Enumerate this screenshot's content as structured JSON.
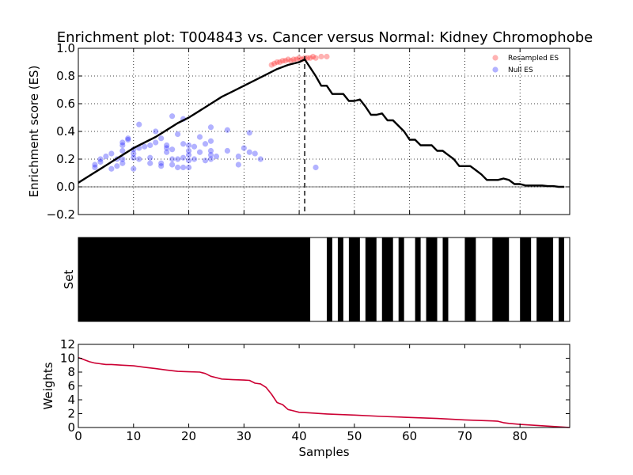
{
  "chart_data": [
    {
      "panel": "enrichment",
      "type": "line",
      "title": "Enrichment plot: T004843 vs. Cancer versus Normal: Kidney Chromophobe",
      "xlabel": "",
      "ylabel": "Enrichment score (ES)",
      "xlim": [
        0,
        89
      ],
      "ylim": [
        -0.2,
        1.0
      ],
      "xticks": [
        0,
        10,
        20,
        30,
        40,
        50,
        60,
        70,
        80
      ],
      "yticks": [
        -0.2,
        0.0,
        0.2,
        0.4,
        0.6,
        0.8,
        1.0
      ],
      "ytick_labels": [
        "−0.2",
        "0.0",
        "0.2",
        "0.4",
        "0.6",
        "0.8",
        "1.0"
      ],
      "grid": true,
      "legend_position": "top-right",
      "peak_x": 41,
      "running_es": {
        "x": [
          0,
          2,
          4,
          6,
          8,
          10,
          12,
          14,
          16,
          18,
          20,
          22,
          24,
          26,
          28,
          30,
          32,
          34,
          36,
          38,
          40,
          41,
          42,
          43,
          44,
          45,
          46,
          47,
          48,
          49,
          50,
          51,
          52,
          53,
          54,
          55,
          56,
          57,
          58,
          59,
          60,
          61,
          62,
          63,
          64,
          65,
          66,
          67,
          68,
          69,
          70,
          71,
          72,
          73,
          74,
          75,
          76,
          77,
          78,
          79,
          80,
          81,
          82,
          83,
          84,
          85,
          86,
          87,
          88
        ],
        "y": [
          0.03,
          0.08,
          0.13,
          0.18,
          0.23,
          0.28,
          0.32,
          0.36,
          0.41,
          0.46,
          0.5,
          0.55,
          0.6,
          0.65,
          0.69,
          0.73,
          0.77,
          0.81,
          0.85,
          0.88,
          0.9,
          0.92,
          0.86,
          0.8,
          0.73,
          0.73,
          0.67,
          0.67,
          0.67,
          0.62,
          0.62,
          0.63,
          0.58,
          0.52,
          0.52,
          0.53,
          0.48,
          0.48,
          0.44,
          0.4,
          0.34,
          0.34,
          0.3,
          0.3,
          0.3,
          0.26,
          0.26,
          0.23,
          0.2,
          0.15,
          0.15,
          0.15,
          0.12,
          0.09,
          0.05,
          0.05,
          0.05,
          0.06,
          0.05,
          0.02,
          0.02,
          0.01,
          0.01,
          0.01,
          0.01,
          0.005,
          0.005,
          0.0,
          0.0
        ]
      },
      "series": [
        {
          "name": "Resampled ES",
          "color": "#ff0000",
          "points": [
            [
              35,
              0.88
            ],
            [
              35.5,
              0.89
            ],
            [
              36,
              0.9
            ],
            [
              36.5,
              0.9
            ],
            [
              37,
              0.91
            ],
            [
              37.5,
              0.91
            ],
            [
              38,
              0.92
            ],
            [
              38.5,
              0.91
            ],
            [
              39,
              0.92
            ],
            [
              39.5,
              0.92
            ],
            [
              40,
              0.93
            ],
            [
              40.5,
              0.92
            ],
            [
              41,
              0.93
            ],
            [
              41.5,
              0.93
            ],
            [
              42,
              0.93
            ],
            [
              42.5,
              0.94
            ],
            [
              43,
              0.93
            ],
            [
              44,
              0.94
            ],
            [
              45,
              0.94
            ]
          ]
        },
        {
          "name": "Null ES",
          "color": "#0000ff",
          "points": [
            [
              3,
              0.14
            ],
            [
              3,
              0.16
            ],
            [
              4,
              0.18
            ],
            [
              4,
              0.2
            ],
            [
              5,
              0.22
            ],
            [
              6,
              0.24
            ],
            [
              6,
              0.13
            ],
            [
              7,
              0.15
            ],
            [
              7,
              0.2
            ],
            [
              8,
              0.26
            ],
            [
              8,
              0.3
            ],
            [
              8,
              0.32
            ],
            [
              8,
              0.2
            ],
            [
              8,
              0.17
            ],
            [
              9,
              0.34
            ],
            [
              9,
              0.35
            ],
            [
              10,
              0.27
            ],
            [
              10,
              0.24
            ],
            [
              10,
              0.21
            ],
            [
              10,
              0.13
            ],
            [
              11,
              0.45
            ],
            [
              11,
              0.28
            ],
            [
              11,
              0.2
            ],
            [
              12,
              0.29
            ],
            [
              13,
              0.3
            ],
            [
              13,
              0.21
            ],
            [
              13,
              0.17
            ],
            [
              14,
              0.32
            ],
            [
              14,
              0.4
            ],
            [
              15,
              0.35
            ],
            [
              15,
              0.17
            ],
            [
              15,
              0.15
            ],
            [
              16,
              0.28
            ],
            [
              16,
              0.3
            ],
            [
              16,
              0.25
            ],
            [
              17,
              0.27
            ],
            [
              17,
              0.2
            ],
            [
              17,
              0.16
            ],
            [
              17,
              0.51
            ],
            [
              18,
              0.38
            ],
            [
              18,
              0.2
            ],
            [
              18,
              0.14
            ],
            [
              19,
              0.49
            ],
            [
              19,
              0.31
            ],
            [
              19,
              0.21
            ],
            [
              19,
              0.14
            ],
            [
              20,
              0.3
            ],
            [
              20,
              0.26
            ],
            [
              20,
              0.23
            ],
            [
              20,
              0.19
            ],
            [
              20,
              0.14
            ],
            [
              21,
              0.29
            ],
            [
              21,
              0.2
            ],
            [
              22,
              0.36
            ],
            [
              22,
              0.25
            ],
            [
              23,
              0.19
            ],
            [
              23,
              0.31
            ],
            [
              24,
              0.43
            ],
            [
              24,
              0.33
            ],
            [
              24,
              0.26
            ],
            [
              24,
              0.23
            ],
            [
              24,
              0.2
            ],
            [
              25,
              0.22
            ],
            [
              27,
              0.41
            ],
            [
              27,
              0.26
            ],
            [
              29,
              0.16
            ],
            [
              29,
              0.22
            ],
            [
              30,
              0.28
            ],
            [
              31,
              0.25
            ],
            [
              31,
              0.39
            ],
            [
              32,
              0.24
            ],
            [
              33,
              0.2
            ],
            [
              43,
              0.14
            ]
          ]
        }
      ]
    },
    {
      "panel": "set",
      "type": "barcode",
      "ylabel": "Set",
      "xlim": [
        0,
        89
      ],
      "member_bars": [
        [
          0,
          42
        ],
        [
          45,
          46
        ],
        [
          47,
          48
        ],
        [
          49,
          51
        ],
        [
          52,
          54
        ],
        [
          55,
          57
        ],
        [
          58,
          59
        ],
        [
          61,
          62
        ],
        [
          63,
          65
        ],
        [
          66,
          67
        ],
        [
          70,
          72
        ],
        [
          75,
          78
        ],
        [
          80,
          82
        ],
        [
          83,
          86
        ],
        [
          87,
          88
        ]
      ]
    },
    {
      "panel": "weights",
      "type": "line",
      "xlabel": "Samples",
      "ylabel": "Weights",
      "xlim": [
        0,
        89
      ],
      "ylim": [
        0,
        12
      ],
      "xticks": [
        0,
        10,
        20,
        30,
        40,
        50,
        60,
        70,
        80
      ],
      "yticks": [
        0,
        2,
        4,
        6,
        8,
        10,
        12
      ],
      "color": "#cc0033",
      "x": [
        0,
        1,
        2,
        3,
        4,
        5,
        6,
        8,
        10,
        12,
        14,
        16,
        18,
        20,
        22,
        23,
        24,
        25,
        26,
        28,
        30,
        31,
        32,
        33,
        34,
        35,
        36,
        37,
        38,
        39,
        40,
        42,
        45,
        50,
        55,
        60,
        65,
        70,
        75,
        76,
        77,
        78,
        80,
        82,
        84,
        86,
        88,
        89
      ],
      "y": [
        10.1,
        9.8,
        9.5,
        9.3,
        9.2,
        9.1,
        9.1,
        9.0,
        8.9,
        8.7,
        8.5,
        8.3,
        8.1,
        8.05,
        8.0,
        7.8,
        7.4,
        7.2,
        7.0,
        6.9,
        6.85,
        6.8,
        6.4,
        6.3,
        5.8,
        4.8,
        3.6,
        3.3,
        2.6,
        2.4,
        2.2,
        2.1,
        1.95,
        1.8,
        1.6,
        1.45,
        1.3,
        1.1,
        0.95,
        0.9,
        0.7,
        0.6,
        0.45,
        0.35,
        0.25,
        0.15,
        0.05,
        0.0
      ]
    }
  ]
}
